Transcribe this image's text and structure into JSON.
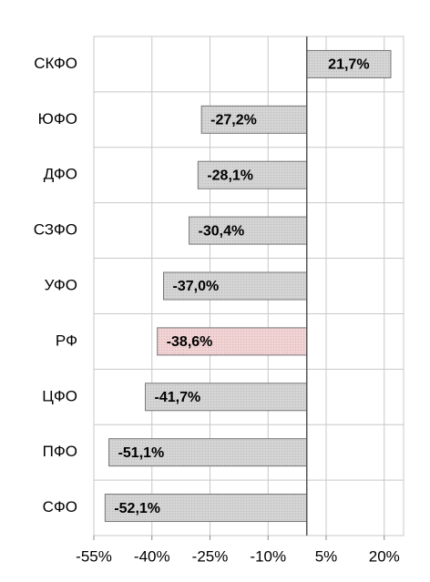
{
  "chart_data": {
    "type": "barh",
    "categories": [
      "СКФО",
      "ЮФО",
      "ДФО",
      "СЗФО",
      "УФО",
      "РФ",
      "ЦФО",
      "ПФО",
      "СФО"
    ],
    "values": [
      21.7,
      -27.2,
      -28.1,
      -30.4,
      -37.0,
      -38.6,
      -41.7,
      -51.1,
      -52.1
    ],
    "value_labels": [
      "21,7%",
      "-27,2%",
      "-28,1%",
      "-30,4%",
      "-37,0%",
      "-38,6%",
      "-41,7%",
      "-51,1%",
      "-52,1%"
    ],
    "colors": [
      "#d4d4d4",
      "#d4d4d4",
      "#d4d4d4",
      "#d4d4d4",
      "#d4d4d4",
      "#f2d2d2",
      "#d4d4d4",
      "#d4d4d4",
      "#d4d4d4"
    ],
    "xlim": [
      -55,
      25
    ],
    "xticks": [
      {
        "value": -55,
        "label": "-55%"
      },
      {
        "value": -40,
        "label": "-40%"
      },
      {
        "value": -25,
        "label": "-25%"
      },
      {
        "value": -10,
        "label": "-10%"
      },
      {
        "value": 5,
        "label": "5%"
      },
      {
        "value": 20,
        "label": "20%"
      }
    ],
    "grid": true
  }
}
